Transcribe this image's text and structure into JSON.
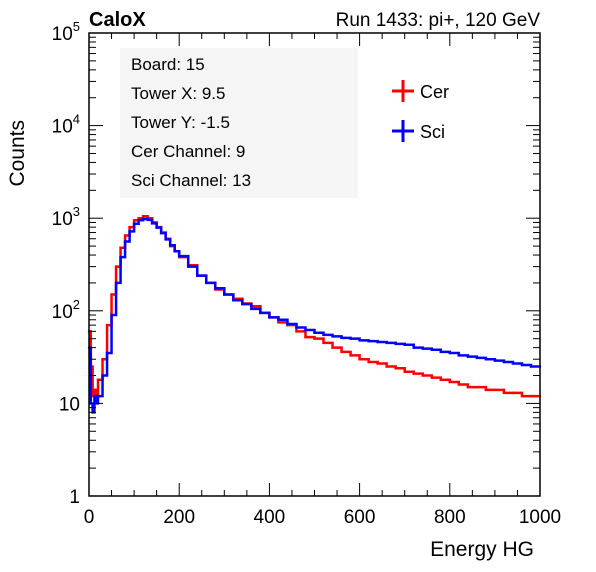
{
  "chart_data": {
    "type": "line",
    "brand": "CaloX",
    "title": "Run 1433: pi+, 120 GeV",
    "xlabel": "Energy HG",
    "ylabel": "Counts",
    "xlim": [
      0,
      1000
    ],
    "ylim": [
      1,
      100000
    ],
    "y_scale": "log",
    "grid": false,
    "legend_position": "top-right",
    "x_ticks": [
      {
        "value": 0,
        "label": "0"
      },
      {
        "value": 200,
        "label": "200"
      },
      {
        "value": 400,
        "label": "400"
      },
      {
        "value": 600,
        "label": "600"
      },
      {
        "value": 800,
        "label": "800"
      },
      {
        "value": 1000,
        "label": "1000"
      }
    ],
    "y_ticks": [
      {
        "value": 1,
        "base": "1",
        "exp": ""
      },
      {
        "value": 10,
        "base": "10",
        "exp": ""
      },
      {
        "value": 100,
        "base": "10",
        "exp": "2"
      },
      {
        "value": 1000,
        "base": "10",
        "exp": "3"
      },
      {
        "value": 10000,
        "base": "10",
        "exp": "4"
      },
      {
        "value": 100000,
        "base": "10",
        "exp": "5"
      }
    ],
    "info_lines": [
      "Board: 15",
      "Tower X: 9.5",
      "Tower Y: -1.5",
      "Cer Channel: 9",
      "Sci Channel: 13"
    ],
    "series": [
      {
        "name": "Cer",
        "color": "#ff0000",
        "x": [
          0,
          4,
          8,
          12,
          16,
          20,
          30,
          40,
          50,
          60,
          70,
          80,
          90,
          100,
          110,
          120,
          130,
          140,
          150,
          160,
          170,
          180,
          190,
          200,
          220,
          240,
          260,
          280,
          300,
          320,
          340,
          360,
          380,
          400,
          420,
          440,
          460,
          480,
          500,
          520,
          540,
          560,
          580,
          600,
          620,
          640,
          660,
          680,
          700,
          720,
          740,
          760,
          780,
          800,
          820,
          840,
          860,
          880,
          900,
          920,
          940,
          960,
          980,
          1000
        ],
        "y": [
          60,
          25,
          12,
          14,
          12,
          18,
          30,
          70,
          150,
          300,
          480,
          650,
          800,
          950,
          1000,
          1050,
          1000,
          900,
          800,
          700,
          600,
          500,
          440,
          380,
          310,
          240,
          200,
          170,
          150,
          135,
          120,
          112,
          95,
          85,
          75,
          70,
          60,
          52,
          50,
          45,
          40,
          36,
          33,
          30,
          28,
          27,
          25,
          24,
          22,
          21,
          20,
          19,
          18,
          17,
          16,
          15,
          15,
          14,
          14,
          13,
          13,
          12,
          12,
          12
        ]
      },
      {
        "name": "Sci",
        "color": "#0000ff",
        "x": [
          0,
          4,
          8,
          12,
          16,
          20,
          30,
          40,
          50,
          60,
          70,
          80,
          90,
          100,
          110,
          120,
          130,
          140,
          150,
          160,
          170,
          180,
          190,
          200,
          220,
          240,
          260,
          280,
          300,
          320,
          340,
          360,
          380,
          400,
          420,
          440,
          460,
          480,
          500,
          520,
          540,
          560,
          580,
          600,
          620,
          640,
          660,
          680,
          700,
          720,
          740,
          760,
          780,
          800,
          820,
          840,
          860,
          880,
          900,
          920,
          940,
          960,
          980,
          1000
        ],
        "y": [
          40,
          10,
          8,
          12,
          10,
          12,
          20,
          35,
          90,
          200,
          380,
          560,
          720,
          870,
          950,
          980,
          960,
          880,
          790,
          690,
          590,
          510,
          440,
          390,
          300,
          240,
          200,
          175,
          150,
          130,
          118,
          105,
          95,
          85,
          80,
          72,
          66,
          62,
          58,
          55,
          53,
          51,
          50,
          48,
          47,
          46,
          45,
          44,
          43,
          40,
          39,
          38,
          36,
          35,
          33,
          32,
          31,
          30,
          29,
          28,
          27,
          26,
          25,
          25
        ]
      }
    ]
  }
}
